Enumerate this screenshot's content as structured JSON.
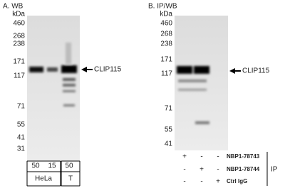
{
  "panel_a": {
    "title": "A. WB",
    "unit": "kDa",
    "markers": [
      460,
      268,
      238,
      171,
      117,
      71,
      55,
      41,
      31
    ],
    "target": "CLIP115",
    "lane_amounts": [
      50,
      15,
      50
    ],
    "groups": [
      "HeLa",
      "T"
    ]
  },
  "panel_b": {
    "title": "B. IP/WB",
    "unit": "kDa",
    "markers": [
      460,
      268,
      238,
      171,
      117,
      71,
      55,
      41
    ],
    "target": "CLIP115",
    "rows": [
      {
        "signs": [
          "+",
          "-",
          "-"
        ],
        "label": "NBP1-78743"
      },
      {
        "signs": [
          "-",
          "+",
          "-"
        ],
        "label": "NBP1-78744"
      },
      {
        "signs": [
          "-",
          "-",
          "+"
        ],
        "label": "Ctrl IgG"
      }
    ],
    "ip_label": "IP"
  }
}
